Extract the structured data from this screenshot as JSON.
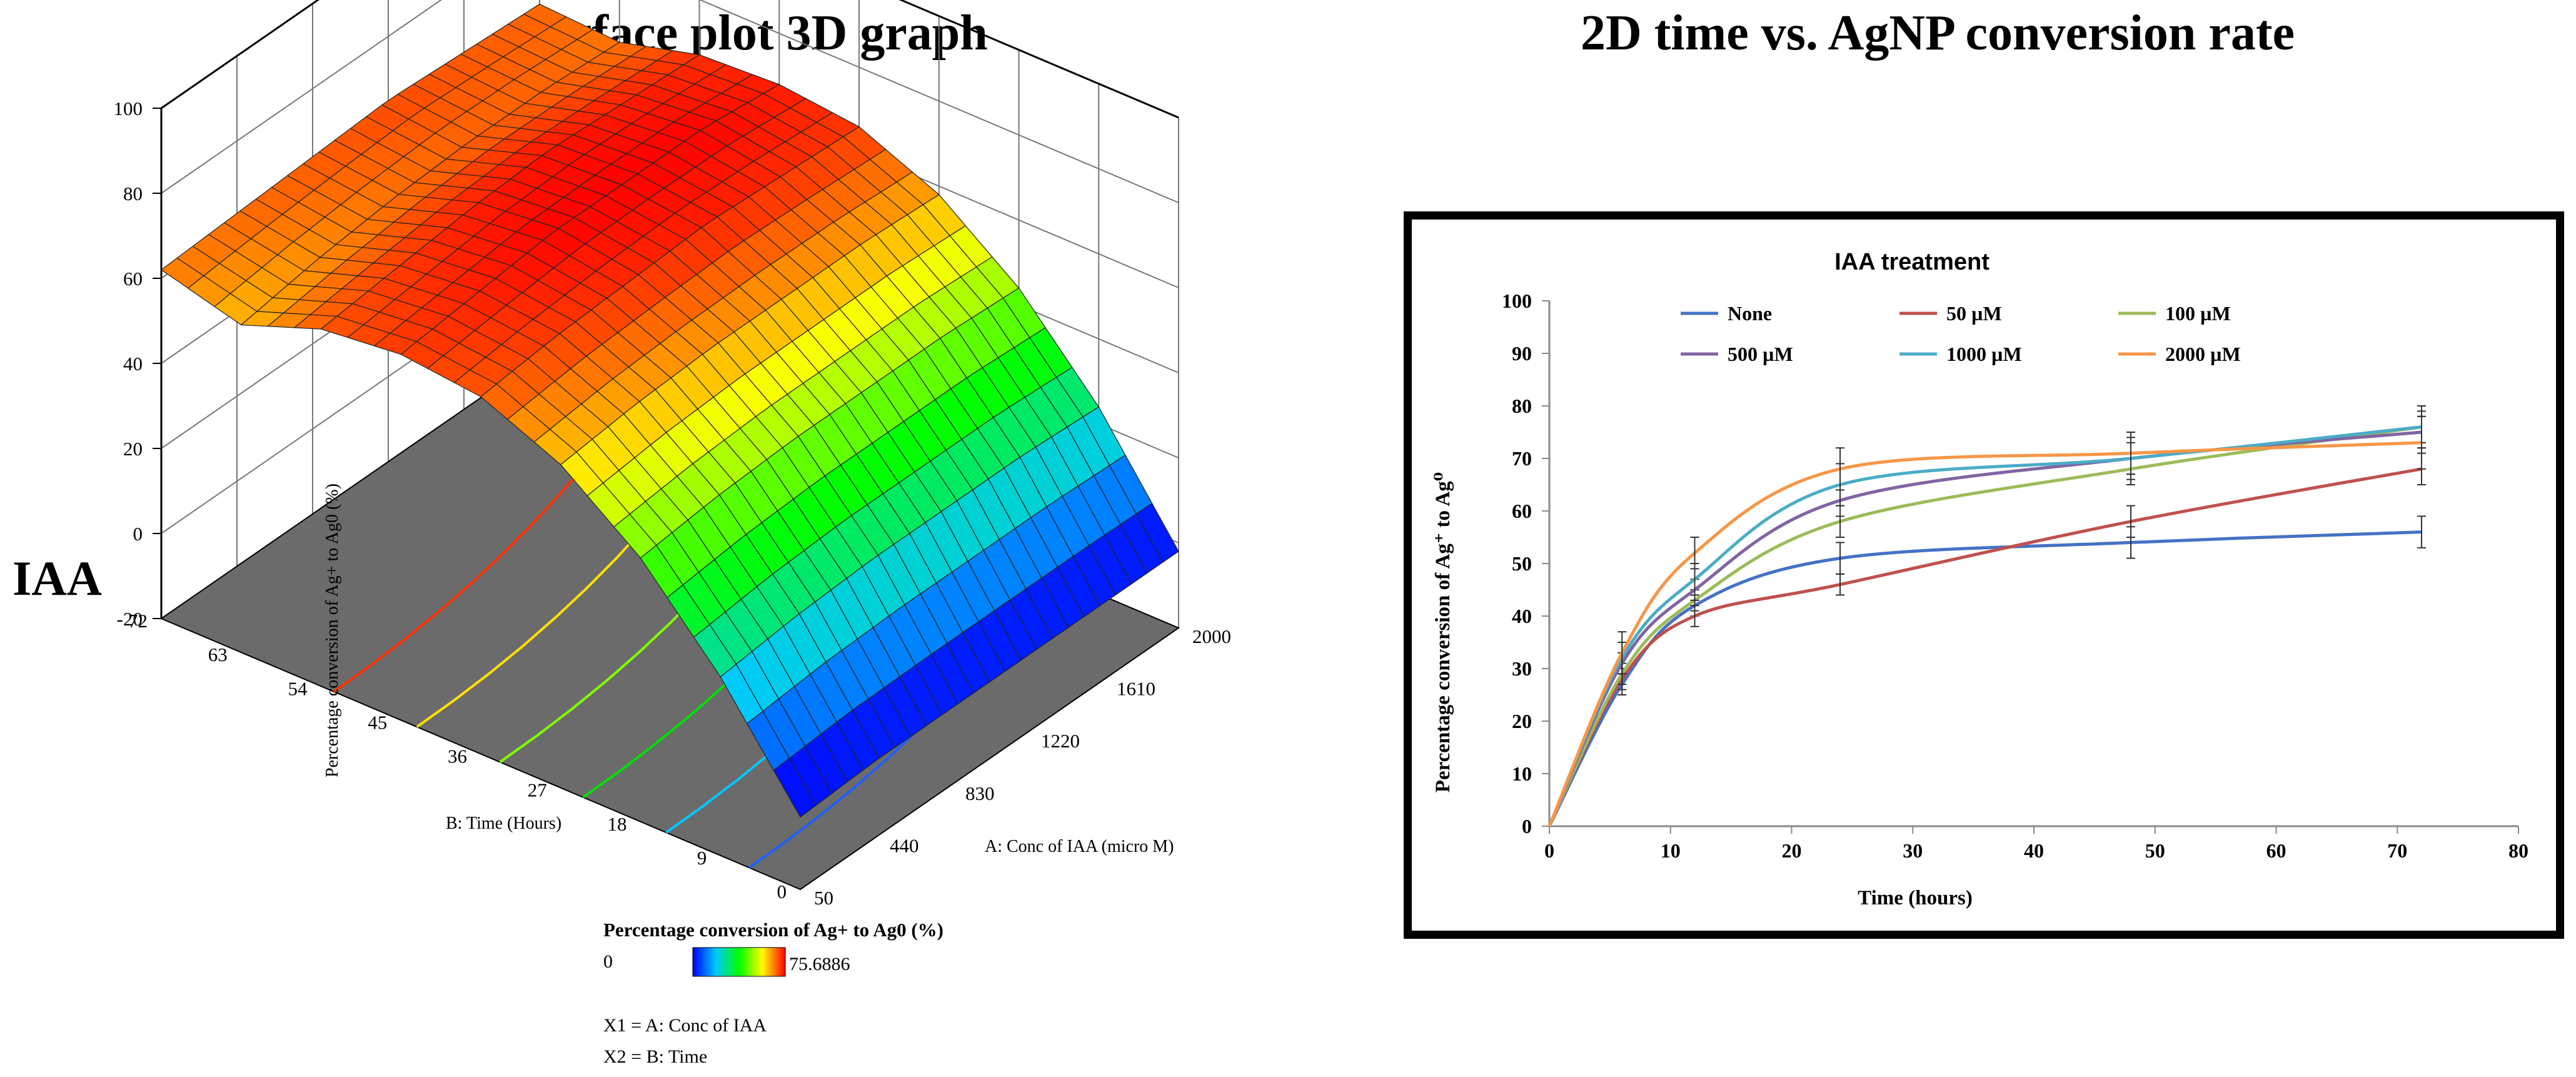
{
  "headings": {
    "left": "Surface plot 3D graph",
    "right": "2D time vs. AgNP conversion rate"
  },
  "row_label": "IAA",
  "surface_legend": {
    "title": "Percentage conversion of Ag+ to Ag0 (%)",
    "min": "0",
    "max": "75.6886",
    "factors": [
      "X1 = A: Conc of IAA",
      "X2 = B: Time"
    ],
    "colors": [
      "#0000ff",
      "#00c8ff",
      "#00ff00",
      "#ffff00",
      "#ff0000"
    ]
  },
  "chart_data": [
    {
      "type": "surface3d",
      "title": "",
      "xlabel": "A: Conc of IAA (micro M)",
      "ylabel": "B: Time (Hours)",
      "zlabel": "Percentage conversion of Ag+ to Ag0 (%)",
      "x_ticks": [
        "50",
        "440",
        "830",
        "1220",
        "1610",
        "2000"
      ],
      "y_ticks": [
        "0",
        "9",
        "18",
        "27",
        "36",
        "45",
        "54",
        "63",
        "72"
      ],
      "z_ticks": [
        "-20",
        "0",
        "20",
        "40",
        "60",
        "80",
        "100"
      ],
      "xlim": [
        50,
        2000
      ],
      "ylim": [
        0,
        72
      ],
      "zlim": [
        -20,
        100
      ],
      "x_grid": [
        50,
        440,
        830,
        1220,
        1610,
        2000
      ],
      "y_grid": [
        0,
        9,
        18,
        27,
        36,
        45,
        54,
        63,
        72
      ],
      "z_grid": [
        [
          -3,
          22,
          42,
          56,
          64,
          66,
          64,
          57,
          62
        ],
        [
          -2,
          24,
          44,
          58,
          66,
          68,
          66,
          60,
          63
        ],
        [
          -2,
          25,
          45,
          59,
          67,
          70,
          68,
          62,
          64
        ],
        [
          -2,
          25,
          45,
          59,
          68,
          70,
          69,
          63,
          65
        ],
        [
          -2,
          25,
          45,
          59,
          67,
          70,
          68,
          63,
          64
        ],
        [
          -2,
          24,
          44,
          58,
          66,
          68,
          67,
          62,
          63
        ]
      ]
    },
    {
      "type": "line",
      "title": "IAA treatment",
      "xlabel": "Time (hours)",
      "ylabel": "Percentage conversion of Ag⁺ to Ag⁰",
      "xlim": [
        0,
        80
      ],
      "ylim": [
        0,
        100
      ],
      "x_ticks": [
        0,
        10,
        20,
        30,
        40,
        50,
        60,
        70,
        80
      ],
      "y_ticks": [
        0,
        10,
        20,
        30,
        40,
        50,
        60,
        70,
        80,
        90,
        100
      ],
      "grid": false,
      "legend_position": "top",
      "x": [
        0,
        6,
        12,
        24,
        48,
        72
      ],
      "series": [
        {
          "name": "None",
          "color": "#4472c4",
          "values": [
            0,
            27,
            42,
            51,
            54,
            56
          ],
          "errors": [
            0,
            2,
            2,
            3,
            3,
            3
          ]
        },
        {
          "name": "50 µM",
          "color": "#c0504d",
          "values": [
            0,
            28,
            40,
            46,
            58,
            68
          ],
          "errors": [
            0,
            2,
            2,
            2,
            3,
            3
          ]
        },
        {
          "name": "100  µM",
          "color": "#9bbb59",
          "values": [
            0,
            29,
            43,
            58,
            68,
            76
          ],
          "errors": [
            0,
            2,
            2,
            3,
            3,
            3
          ]
        },
        {
          "name": "500  µM",
          "color": "#8064a2",
          "values": [
            0,
            31,
            45,
            62,
            70,
            75
          ],
          "errors": [
            0,
            2,
            2,
            3,
            3,
            3
          ]
        },
        {
          "name": "1000  µM",
          "color": "#4bacc6",
          "values": [
            0,
            32,
            47,
            65,
            70,
            76
          ],
          "errors": [
            0,
            3,
            3,
            4,
            4,
            4
          ]
        },
        {
          "name": "2000  µM",
          "color": "#f79646",
          "values": [
            0,
            33,
            52,
            68,
            71,
            73
          ],
          "errors": [
            0,
            4,
            3,
            4,
            4,
            5
          ]
        }
      ]
    }
  ]
}
